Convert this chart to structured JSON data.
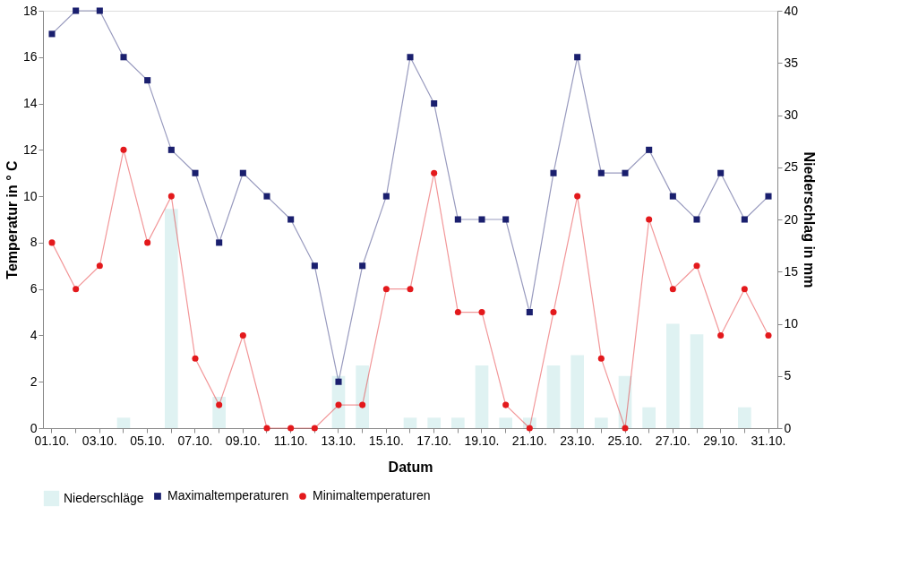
{
  "chart_data": {
    "type": "line",
    "xlabel": "Datum",
    "ylabel": "Temperatur in ° C",
    "y2label": "Niederschlag in mm",
    "categories": [
      "01.10.",
      null,
      "03.10.",
      null,
      "05.10.",
      null,
      "07.10.",
      null,
      "09.10.",
      null,
      "11.10.",
      null,
      "13.10.",
      null,
      "15.10.",
      null,
      "17.10.",
      null,
      "19.10.",
      null,
      "21.10.",
      null,
      "23.10.",
      null,
      "25.10.",
      null,
      "27.10.",
      null,
      "29.10.",
      null,
      "31.10."
    ],
    "series": [
      {
        "name": "Niederschläge",
        "type": "bar",
        "axis": "y2",
        "color": "#dff2f2",
        "values": [
          0,
          0,
          0,
          1,
          0,
          21,
          0,
          3,
          0,
          0,
          0,
          0,
          5,
          6,
          0,
          1,
          1,
          1,
          6,
          1,
          1,
          6,
          7,
          1,
          5,
          2,
          10,
          9,
          0,
          2,
          0
        ]
      },
      {
        "name": "Maximaltemperaturen",
        "marker": "square",
        "color": "#1a1f6e",
        "values": [
          17,
          18,
          18,
          16,
          15,
          12,
          11,
          8,
          11,
          10,
          9,
          7,
          2,
          7,
          10,
          16,
          14,
          9,
          9,
          9,
          5,
          11,
          16,
          11,
          11,
          12,
          10,
          9,
          11,
          9,
          10
        ]
      },
      {
        "name": "Minimaltemperaturen",
        "marker": "circle",
        "color": "#e3191c",
        "values": [
          8,
          6,
          7,
          12,
          8,
          10,
          3,
          1,
          4,
          0,
          0,
          0,
          1,
          1,
          6,
          6,
          11,
          5,
          5,
          1,
          0,
          5,
          10,
          3,
          0,
          9,
          6,
          7,
          4,
          6,
          4
        ]
      }
    ],
    "ylim": [
      0,
      18
    ],
    "yticks": [
      0,
      2,
      4,
      6,
      8,
      10,
      12,
      14,
      16,
      18
    ],
    "y2lim": [
      0,
      40
    ],
    "y2ticks": [
      0,
      5,
      10,
      15,
      20,
      25,
      30,
      35,
      40
    ],
    "grid": false,
    "legend": "bottom",
    "line_style": "solid"
  }
}
